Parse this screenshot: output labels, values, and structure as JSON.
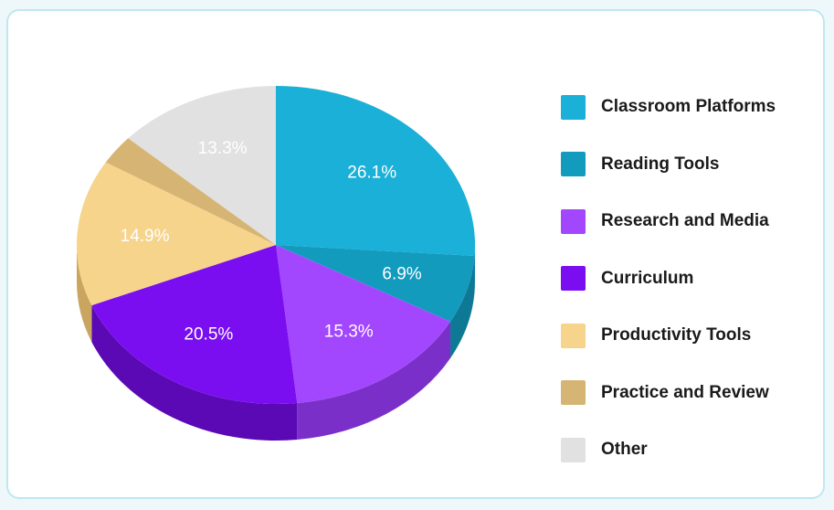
{
  "chart_data": {
    "type": "pie",
    "style": "3d",
    "legend_position": "right",
    "slices": [
      {
        "name": "Classroom Platforms",
        "value": 26.1,
        "label": "26.1%",
        "color": "#1ab0d8",
        "side_color": "#128aab"
      },
      {
        "name": "Reading Tools",
        "value": 6.9,
        "label": "6.9%",
        "color": "#139bbe",
        "side_color": "#0d7995"
      },
      {
        "name": "Research and Media",
        "value": 15.3,
        "label": "15.3%",
        "color": "#a347ff",
        "side_color": "#7b2fc9"
      },
      {
        "name": "Curriculum",
        "value": 20.5,
        "label": "20.5%",
        "color": "#7a0ef0",
        "side_color": "#5a09b4"
      },
      {
        "name": "Productivity Tools",
        "value": 14.9,
        "label": "14.9%",
        "color": "#f6d48c",
        "side_color": "#c9a55f"
      },
      {
        "name": "Practice and Review",
        "value": 3.0,
        "label": "",
        "color": "#d6b574",
        "side_color": "#ad8f55"
      },
      {
        "name": "Other",
        "value": 13.3,
        "label": "13.3%",
        "color": "#e1e1e1",
        "side_color": "#bdbdbd"
      }
    ]
  }
}
